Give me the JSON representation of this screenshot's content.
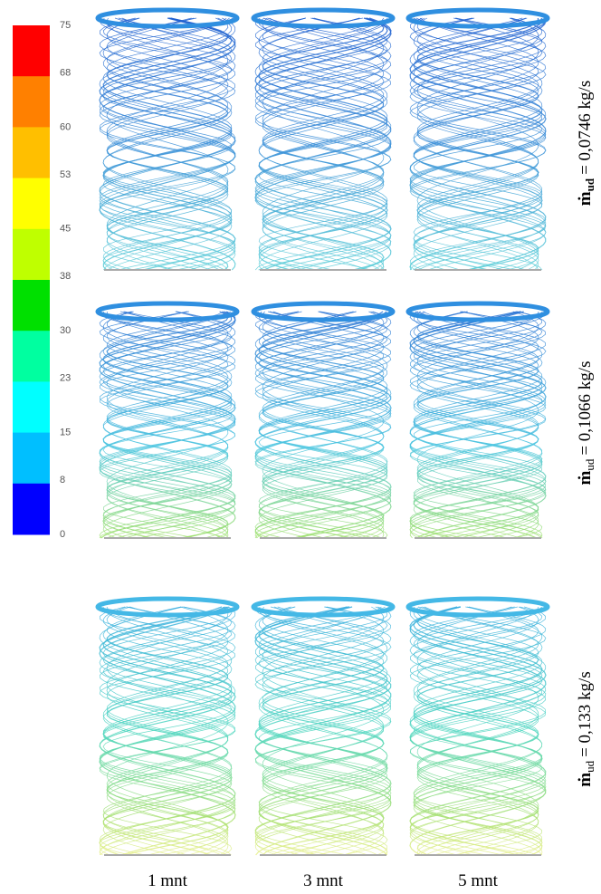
{
  "colorbar": {
    "ticks": [
      75,
      68,
      60,
      53,
      45,
      38,
      30,
      23,
      15,
      8,
      0
    ],
    "colors": [
      "#ff0000",
      "#ff8000",
      "#ffbf00",
      "#ffff00",
      "#bfff00",
      "#00e000",
      "#00ffa0",
      "#00ffff",
      "#00bfff",
      "#0000ff"
    ]
  },
  "rows": [
    {
      "symbol": "ṁ",
      "subscript": "ud",
      "text": "= 0,0746 kg/s"
    },
    {
      "symbol": "ṁ",
      "subscript": "ud",
      "text": "= 0,1066 kg/s"
    },
    {
      "symbol": "ṁ",
      "subscript": "ud",
      "text": "= 0,133 kg/s"
    }
  ],
  "columns": [
    "1 mnt",
    "3 mnt",
    "5 mnt"
  ]
}
